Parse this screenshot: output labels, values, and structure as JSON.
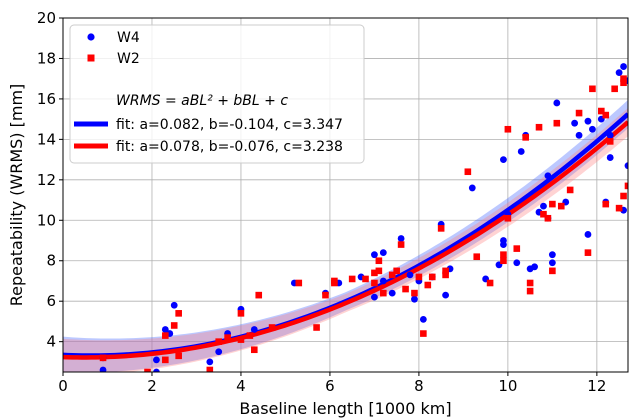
{
  "chart_data": {
    "type": "scatter",
    "xlabel": "Baseline length [1000 km]",
    "ylabel": "Repeatability (WRMS) [mm]",
    "xlim": [
      0,
      12.7
    ],
    "ylim": [
      2.5,
      20
    ],
    "xticks": [
      "0",
      "2",
      "4",
      "6",
      "8",
      "10",
      "12"
    ],
    "yticks": [
      "4",
      "6",
      "8",
      "10",
      "12",
      "14",
      "16",
      "18",
      "20"
    ],
    "grid": true,
    "legend_placement": "top-left",
    "series": [
      {
        "name": "W4",
        "marker": "circle",
        "color": "#0000ff",
        "points": [
          [
            0.9,
            2.6
          ],
          [
            0.9,
            3.2
          ],
          [
            2.1,
            2.5
          ],
          [
            2.1,
            3.1
          ],
          [
            2.3,
            4.6
          ],
          [
            2.4,
            4.4
          ],
          [
            2.5,
            5.8
          ],
          [
            3.3,
            3.0
          ],
          [
            3.5,
            3.5
          ],
          [
            3.7,
            4.4
          ],
          [
            4.0,
            5.6
          ],
          [
            4.3,
            4.6
          ],
          [
            5.2,
            6.9
          ],
          [
            5.9,
            6.4
          ],
          [
            6.2,
            6.9
          ],
          [
            6.7,
            7.2
          ],
          [
            7.0,
            8.3
          ],
          [
            7.0,
            6.2
          ],
          [
            7.2,
            8.4
          ],
          [
            7.2,
            7.0
          ],
          [
            7.4,
            6.4
          ],
          [
            7.6,
            9.1
          ],
          [
            7.8,
            7.3
          ],
          [
            7.9,
            6.1
          ],
          [
            8.0,
            7.0
          ],
          [
            8.1,
            5.1
          ],
          [
            8.3,
            7.2
          ],
          [
            8.5,
            9.8
          ],
          [
            8.7,
            7.6
          ],
          [
            8.6,
            6.3
          ],
          [
            9.2,
            11.6
          ],
          [
            9.5,
            7.1
          ],
          [
            9.8,
            7.8
          ],
          [
            9.9,
            8.8
          ],
          [
            9.9,
            9.0
          ],
          [
            10.0,
            10.3
          ],
          [
            9.9,
            13.0
          ],
          [
            10.2,
            7.9
          ],
          [
            10.3,
            13.4
          ],
          [
            10.4,
            14.2
          ],
          [
            10.5,
            7.6
          ],
          [
            10.6,
            7.7
          ],
          [
            10.7,
            10.4
          ],
          [
            10.8,
            10.7
          ],
          [
            10.9,
            10.1
          ],
          [
            10.9,
            12.2
          ],
          [
            11.0,
            8.3
          ],
          [
            11.0,
            7.9
          ],
          [
            11.1,
            15.8
          ],
          [
            11.3,
            10.9
          ],
          [
            11.5,
            14.8
          ],
          [
            11.6,
            14.2
          ],
          [
            11.8,
            9.3
          ],
          [
            11.8,
            14.9
          ],
          [
            11.9,
            14.5
          ],
          [
            12.1,
            15.0
          ],
          [
            12.2,
            10.9
          ],
          [
            12.3,
            13.1
          ],
          [
            12.3,
            14.2
          ],
          [
            12.5,
            17.3
          ],
          [
            12.6,
            17.6
          ],
          [
            12.6,
            10.5
          ],
          [
            12.7,
            12.7
          ],
          [
            12.7,
            16.9
          ]
        ]
      },
      {
        "name": "W2",
        "marker": "square",
        "color": "#ff0000",
        "points": [
          [
            0.9,
            3.2
          ],
          [
            1.9,
            2.5
          ],
          [
            2.2,
            2.2
          ],
          [
            2.3,
            4.3
          ],
          [
            2.3,
            3.1
          ],
          [
            2.5,
            4.8
          ],
          [
            2.6,
            5.4
          ],
          [
            2.6,
            3.3
          ],
          [
            3.3,
            2.6
          ],
          [
            3.5,
            4.0
          ],
          [
            3.7,
            4.2
          ],
          [
            4.0,
            4.1
          ],
          [
            4.0,
            5.4
          ],
          [
            4.2,
            4.3
          ],
          [
            4.3,
            3.6
          ],
          [
            4.4,
            6.3
          ],
          [
            4.7,
            4.7
          ],
          [
            5.3,
            6.9
          ],
          [
            5.7,
            4.7
          ],
          [
            5.9,
            6.3
          ],
          [
            6.1,
            6.9
          ],
          [
            6.1,
            7.0
          ],
          [
            6.5,
            7.1
          ],
          [
            6.8,
            7.1
          ],
          [
            7.0,
            6.9
          ],
          [
            7.0,
            7.4
          ],
          [
            7.1,
            7.5
          ],
          [
            7.1,
            8.0
          ],
          [
            7.2,
            6.4
          ],
          [
            7.4,
            7.3
          ],
          [
            7.5,
            7.5
          ],
          [
            7.6,
            8.8
          ],
          [
            7.7,
            6.6
          ],
          [
            7.9,
            6.4
          ],
          [
            8.0,
            7.2
          ],
          [
            8.1,
            4.4
          ],
          [
            8.2,
            6.8
          ],
          [
            8.3,
            7.2
          ],
          [
            8.5,
            9.6
          ],
          [
            8.6,
            7.5
          ],
          [
            8.6,
            7.3
          ],
          [
            9.1,
            12.4
          ],
          [
            9.3,
            8.2
          ],
          [
            9.6,
            6.9
          ],
          [
            9.9,
            8.3
          ],
          [
            9.9,
            8.0
          ],
          [
            10.0,
            10.1
          ],
          [
            10.0,
            14.5
          ],
          [
            10.2,
            8.6
          ],
          [
            10.4,
            14.1
          ],
          [
            10.5,
            6.9
          ],
          [
            10.5,
            6.5
          ],
          [
            10.7,
            14.6
          ],
          [
            10.8,
            10.3
          ],
          [
            10.9,
            10.1
          ],
          [
            11.0,
            7.5
          ],
          [
            11.0,
            10.8
          ],
          [
            11.1,
            14.8
          ],
          [
            11.2,
            10.7
          ],
          [
            11.4,
            11.5
          ],
          [
            11.6,
            15.3
          ],
          [
            11.8,
            8.4
          ],
          [
            11.9,
            16.5
          ],
          [
            12.1,
            15.4
          ],
          [
            12.2,
            15.2
          ],
          [
            12.2,
            10.8
          ],
          [
            12.3,
            13.9
          ],
          [
            12.4,
            16.5
          ],
          [
            12.5,
            10.6
          ],
          [
            12.6,
            11.2
          ],
          [
            12.6,
            17.0
          ],
          [
            12.6,
            16.8
          ],
          [
            12.7,
            11.7
          ]
        ]
      }
    ],
    "fits": [
      {
        "label": "fit: a=0.082, b=-0.104, c=3.347",
        "a": 0.082,
        "b": -0.104,
        "c": 3.347,
        "color": "#0000ff",
        "band_color": "#4060ff",
        "band_halfwidth": [
          0.9,
          0.45,
          0.7
        ]
      },
      {
        "label": "fit: a=0.078, b=-0.076, c=3.238",
        "a": 0.078,
        "b": -0.076,
        "c": 3.238,
        "color": "#ff0000",
        "band_color": "#ff8080",
        "band_halfwidth": [
          0.9,
          0.45,
          0.7
        ]
      }
    ],
    "formula_label": "WRMS = aBL² + bBL + c",
    "legend": {
      "w4": "W4",
      "w2": "W2",
      "formula": "WRMS = aBL² + bBL + c",
      "fit1": "fit: a=0.082, b=-0.104, c=3.347",
      "fit2": "fit: a=0.078, b=-0.076, c=3.238"
    }
  }
}
